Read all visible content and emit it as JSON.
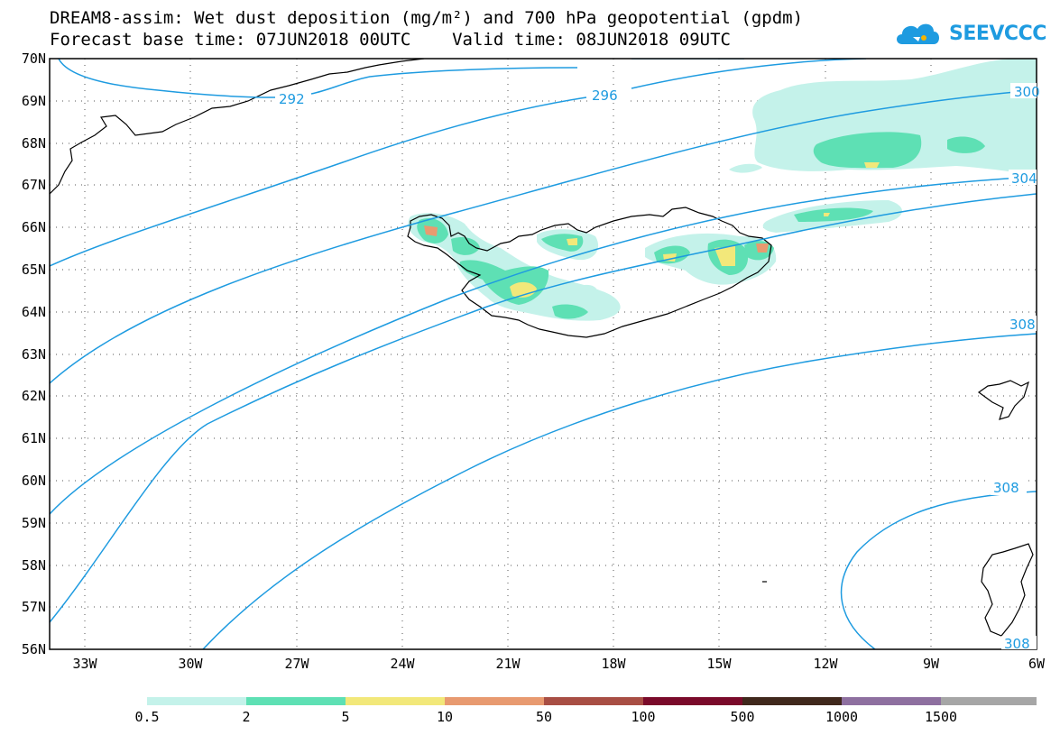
{
  "title_line1": "DREAM8-assim: Wet dust deposition (mg/m²) and 700 hPa geopotential (gpdm)",
  "title_line2": "Forecast base time: 07JUN2018 00UTC    Valid time: 08JUN2018 09UTC",
  "logo": {
    "icon": "cloud-icon",
    "text": "SEEVCCC"
  },
  "map": {
    "lat_labels": [
      "70N",
      "69N",
      "68N",
      "67N",
      "66N",
      "65N",
      "64N",
      "63N",
      "62N",
      "61N",
      "60N",
      "59N",
      "58N",
      "57N",
      "56N"
    ],
    "lon_labels": [
      "33W",
      "30W",
      "27W",
      "24W",
      "21W",
      "18W",
      "15W",
      "12W",
      "9W",
      "6W"
    ],
    "contour_labels": [
      "292",
      "296",
      "300",
      "304",
      "308",
      "308",
      "308"
    ]
  },
  "legend": {
    "labels": [
      "0.5",
      "2",
      "5",
      "10",
      "50",
      "100",
      "500",
      "1000",
      "1500"
    ],
    "colors": [
      "#c4f2ea",
      "#5ee0b4",
      "#f2e87a",
      "#e89a70",
      "#a84e44",
      "#7a0a2a",
      "#40281c",
      "#8e70a0",
      "#a6a6a6"
    ]
  },
  "colors": {
    "contour": "#1e9be0",
    "frame": "#000000"
  }
}
